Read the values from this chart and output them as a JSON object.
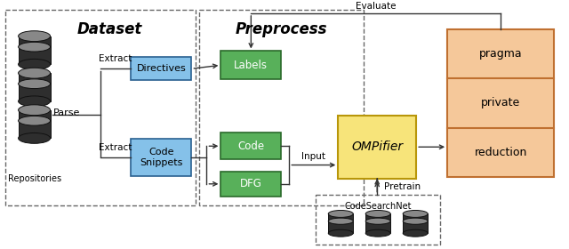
{
  "dataset_label": "Dataset",
  "preprocess_label": "Preprocess",
  "repos_label": "Repositories",
  "parse_label": "Parse",
  "extract1_label": "Extract",
  "extract2_label": "Extract",
  "directives_label": "Directives",
  "code_snippets_label": "Code\nSnippets",
  "labels_label": "Labels",
  "code_label": "Code",
  "dfg_label": "DFG",
  "ompifier_label": "OMPifier",
  "pragma_label": "pragma",
  "private_label": "private",
  "reduction_label": "reduction",
  "evaluate_label": "Evaluate",
  "input_label": "Input",
  "pretrain_label": "Pretrain",
  "codesearchnet_label": "CodeSearchNet",
  "blue_color": "#85c1e9",
  "green_color": "#58b05a",
  "yellow_color": "#f7e47a",
  "orange_color": "#f0b878",
  "orange_fill": "#f5c89a",
  "dark_border": "#333333",
  "dashed_border": "#666666",
  "text_color": "#111111",
  "bg_color": "#ffffff",
  "db_fill": "#2e2e2e",
  "db_top": "#888888"
}
